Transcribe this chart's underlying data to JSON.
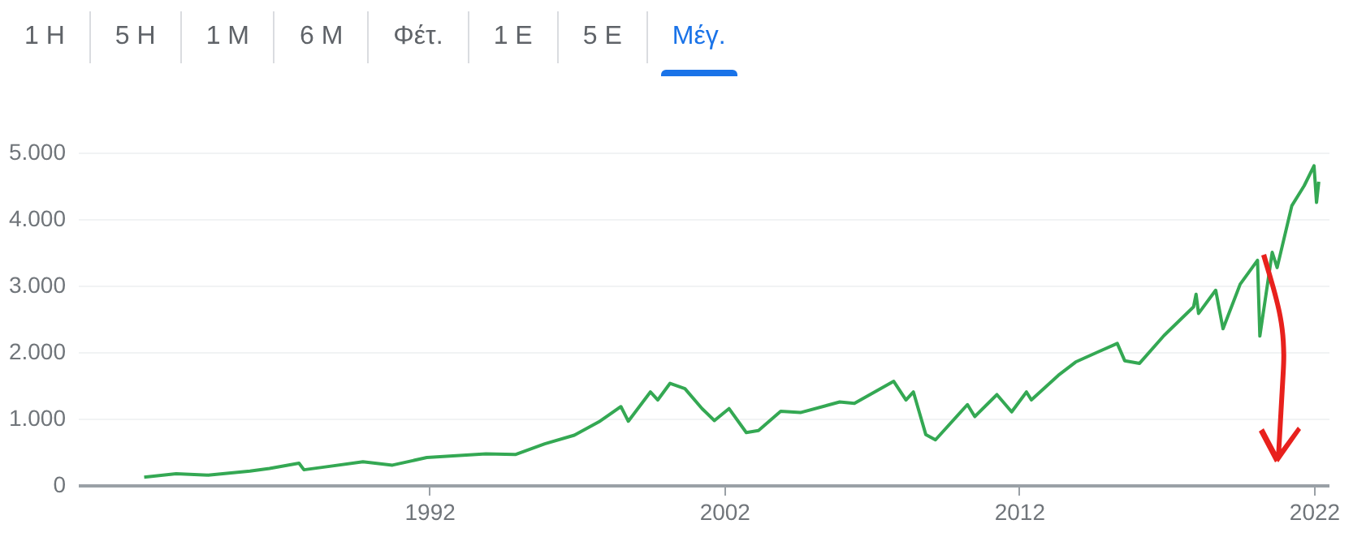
{
  "chart_data": {
    "type": "line",
    "annotations": [
      "1 H",
      "5 H",
      "1 M",
      "6 M",
      "Φέτ.",
      "1 E",
      "5 E",
      "Μέγ."
    ],
    "x": [
      "1982-05",
      "1983-06",
      "1984-07",
      "1985-12",
      "1986-08",
      "1987-08",
      "1987-10",
      "1988-06",
      "1989-10",
      "1990-10",
      "1991-12",
      "1993-12",
      "1994-12",
      "1995-12",
      "1996-12",
      "1997-10",
      "1998-07",
      "1998-10",
      "1999-07",
      "1999-10",
      "2000-03",
      "2000-09",
      "2001-04",
      "2001-09",
      "2002-03",
      "2002-10",
      "2003-03",
      "2003-12",
      "2004-08",
      "2005-12",
      "2006-06",
      "2007-10",
      "2008-03",
      "2008-06",
      "2008-11",
      "2009-03",
      "2010-04",
      "2010-07",
      "2011-04",
      "2011-10",
      "2012-04",
      "2012-06",
      "2013-05",
      "2013-12",
      "2014-09",
      "2015-05",
      "2015-08",
      "2016-02",
      "2016-12",
      "2017-12",
      "2018-01",
      "2018-02",
      "2018-09",
      "2018-12",
      "2019-07",
      "2020-02",
      "2020-03",
      "2020-08",
      "2020-10",
      "2021-04",
      "2021-09",
      "2022-01",
      "2022-02",
      "2022-03"
    ],
    "series": [
      {
        "color": "#34a853",
        "values": [
          120,
          170,
          150,
          210,
          250,
          330,
          230,
          270,
          350,
          300,
          415,
          470,
          460,
          620,
          750,
          950,
          1180,
          960,
          1400,
          1280,
          1530,
          1450,
          1150,
          970,
          1150,
          790,
          820,
          1110,
          1090,
          1250,
          1230,
          1560,
          1280,
          1400,
          760,
          680,
          1210,
          1030,
          1360,
          1100,
          1400,
          1280,
          1650,
          1850,
          2000,
          2130,
          1870,
          1830,
          2250,
          2680,
          2870,
          2580,
          2930,
          2350,
          3020,
          3380,
          2240,
          3500,
          3270,
          4200,
          4500,
          4800,
          4250,
          4560
        ]
      }
    ],
    "xlim": [
      "1980-02",
      "2022-07"
    ],
    "xticks": [
      "1992",
      "2002",
      "2012",
      "2022"
    ],
    "ylim": [
      0,
      5000
    ],
    "yticks": [
      0,
      {
        "value": 1000,
        "label": "1.000"
      },
      {
        "value": 2000,
        "label": "2.000"
      },
      {
        "value": 3000,
        "label": "3.000"
      },
      {
        "value": 4000,
        "label": "4.000"
      },
      {
        "value": 5000,
        "label": "5.000"
      }
    ],
    "grid": "y",
    "marker": "none",
    "line_style": "solid"
  }
}
